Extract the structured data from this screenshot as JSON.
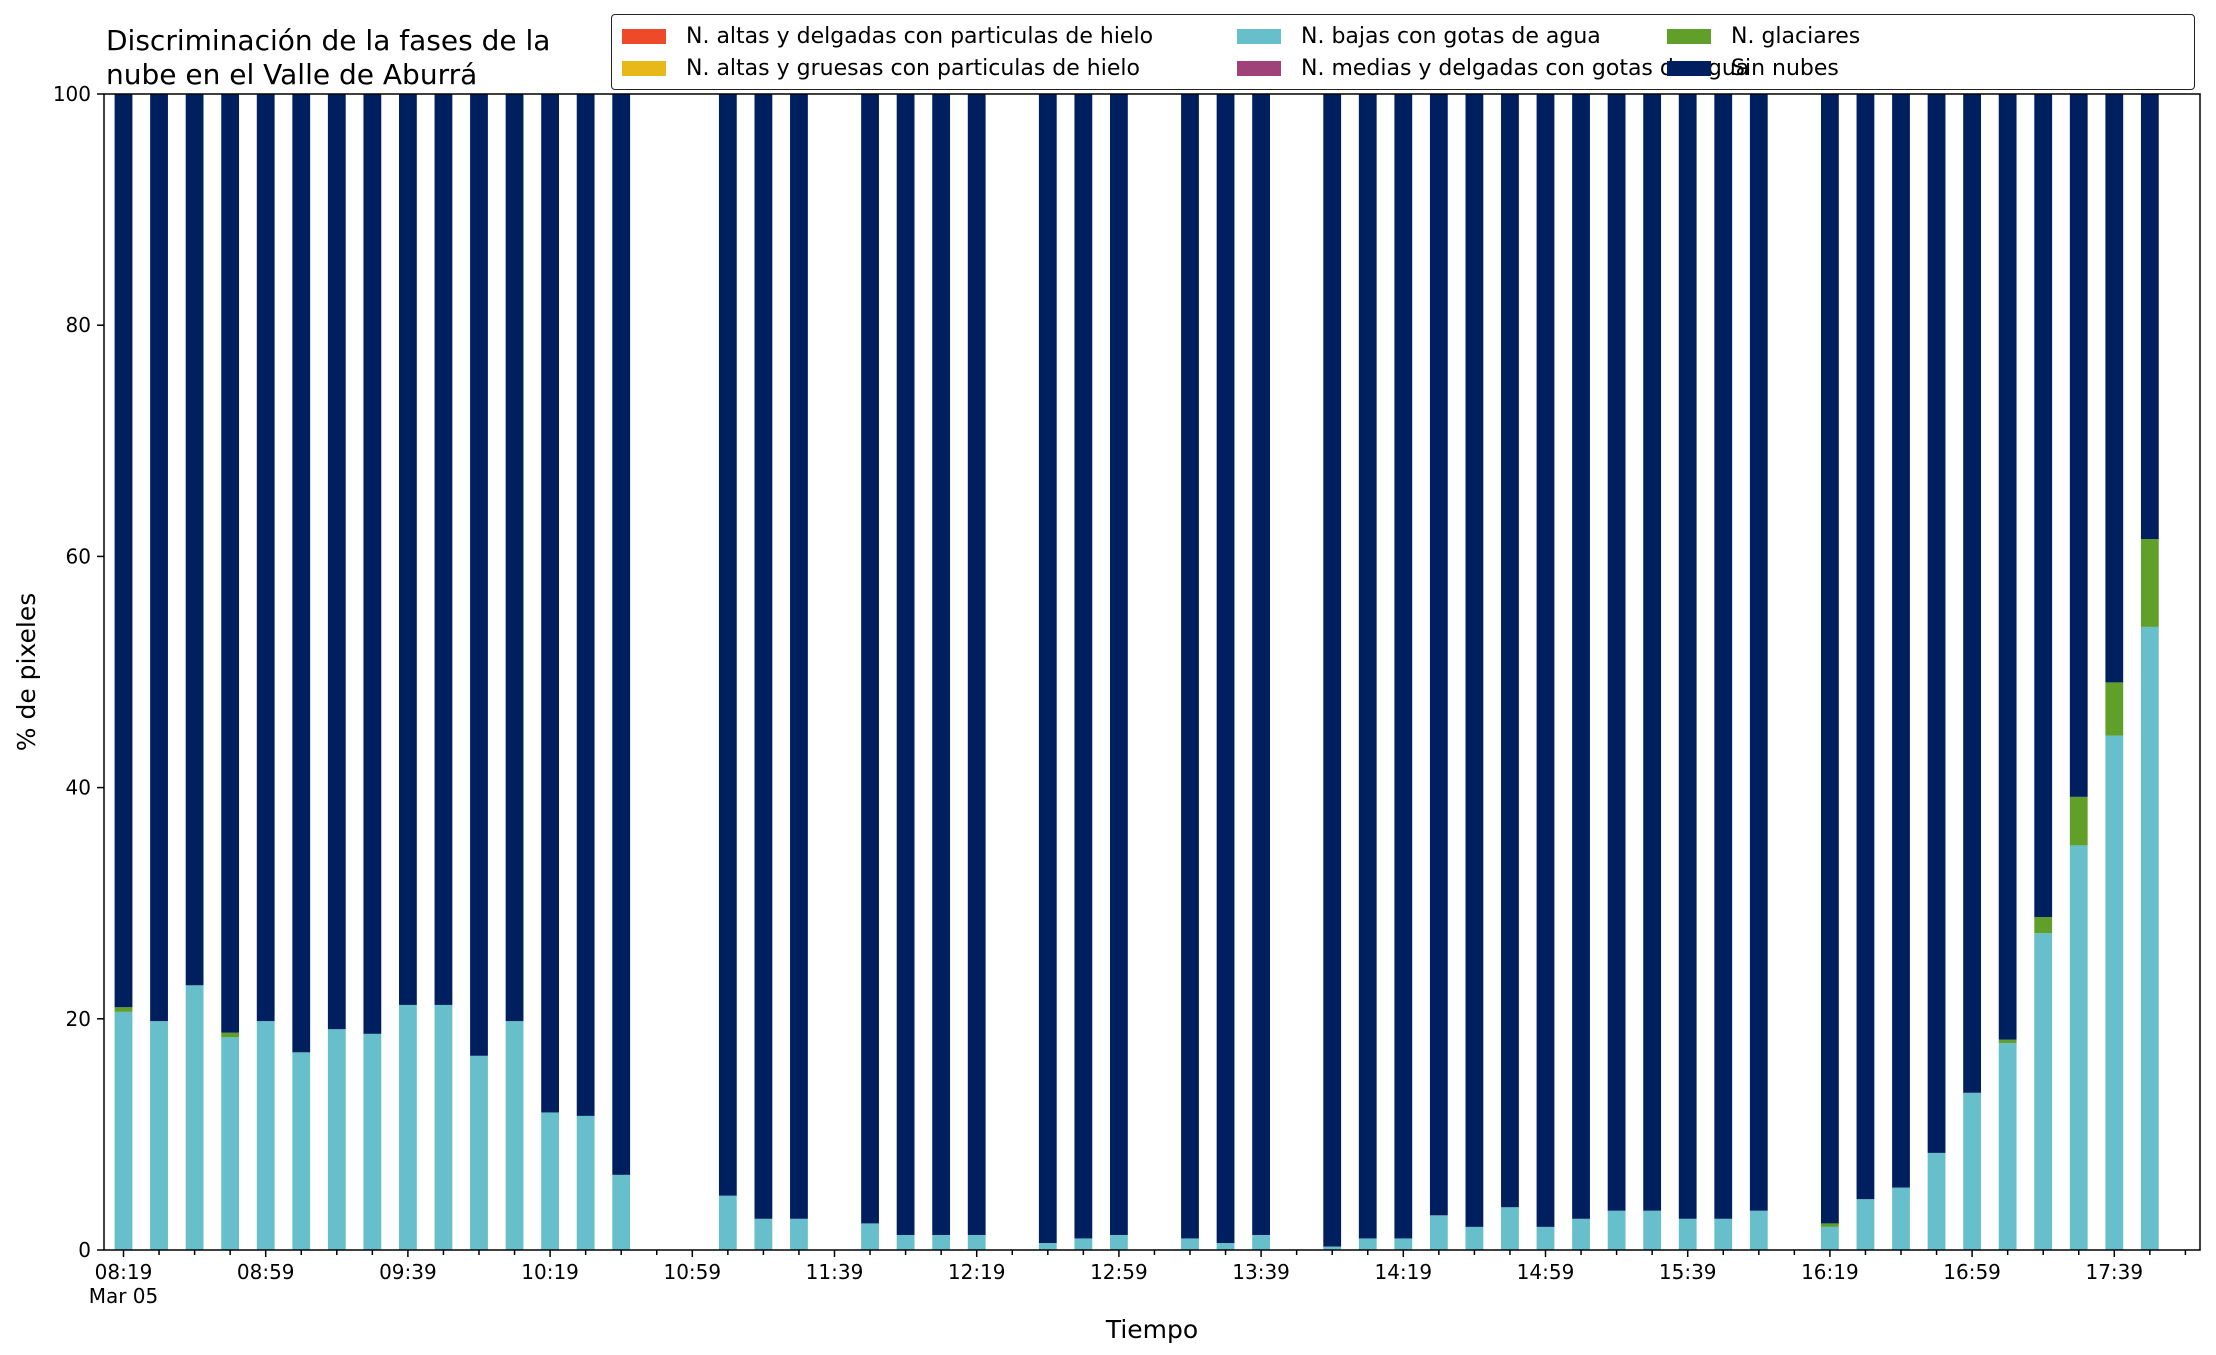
{
  "chart_data": {
    "type": "bar",
    "stacked": true,
    "title": "Discriminación de la fases de la\nnube en el Valle de Aburrá",
    "xlabel": "Tiempo",
    "ylabel": "% de pixeles",
    "ylim": [
      0,
      100
    ],
    "yticks": [
      "0",
      "20",
      "40",
      "60",
      "80",
      "100"
    ],
    "xtick_labels": [
      "08:19\nMar 05",
      "08:59",
      "09:39",
      "10:19",
      "10:59",
      "11:39",
      "12:19",
      "12:59",
      "13:39",
      "14:19",
      "14:59",
      "15:39",
      "16:19",
      "16:59",
      "17:39"
    ],
    "grid": false,
    "legend_position": "top-right",
    "categories": [
      "08:19",
      "08:29",
      "08:39",
      "08:49",
      "08:59",
      "09:09",
      "09:19",
      "09:29",
      "09:39",
      "09:49",
      "09:59",
      "10:09",
      "10:19",
      "10:29",
      "10:39",
      "10:49",
      "10:59",
      "11:09",
      "11:19",
      "11:29",
      "11:39",
      "11:49",
      "11:59",
      "12:09",
      "12:19",
      "12:29",
      "12:39",
      "12:49",
      "12:59",
      "13:09",
      "13:19",
      "13:29",
      "13:39",
      "13:49",
      "13:59",
      "14:09",
      "14:19",
      "14:29",
      "14:39",
      "14:49",
      "14:59",
      "15:09",
      "15:19",
      "15:29",
      "15:39",
      "15:49",
      "15:59",
      "16:09",
      "16:19",
      "16:29",
      "16:39",
      "16:49",
      "16:59",
      "17:09",
      "17:19",
      "17:29",
      "17:39",
      "17:49"
    ],
    "series": [
      {
        "name": "N. altas y delgadas con particulas de hielo",
        "color": "#ee4a2a",
        "values": [
          0,
          0,
          0,
          0,
          0,
          0,
          0,
          0,
          0,
          0,
          0,
          0,
          0,
          0,
          0,
          0,
          0,
          0,
          0,
          0,
          0,
          0,
          0,
          0,
          0,
          0,
          0,
          0,
          0,
          0,
          0,
          0,
          0,
          0,
          0,
          0,
          0,
          0,
          0,
          0,
          0,
          0,
          0,
          0,
          0,
          0,
          0,
          0,
          0,
          0,
          0,
          0,
          0,
          0,
          0,
          0,
          0,
          0
        ]
      },
      {
        "name": "N. altas y gruesas con particulas de hielo",
        "color": "#e6b919",
        "values": [
          0,
          0,
          0,
          0,
          0,
          0,
          0,
          0,
          0,
          0,
          0,
          0,
          0,
          0,
          0,
          0,
          0,
          0,
          0,
          0,
          0,
          0,
          0,
          0,
          0,
          0,
          0,
          0,
          0,
          0,
          0,
          0,
          0,
          0,
          0,
          0,
          0,
          0,
          0,
          0,
          0,
          0,
          0,
          0,
          0,
          0,
          0,
          0,
          0,
          0,
          0,
          0,
          0,
          0,
          0,
          0,
          0,
          0
        ]
      },
      {
        "name": "N. bajas con gotas de agua",
        "color": "#66bfcb",
        "values": [
          20.6,
          19.8,
          22.9,
          18.4,
          19.8,
          17.1,
          19.1,
          18.7,
          21.2,
          21.2,
          16.8,
          19.8,
          11.9,
          11.6,
          6.5,
          0,
          0,
          4.7,
          2.7,
          2.7,
          0,
          2.3,
          1.3,
          1.3,
          1.3,
          0,
          0.6,
          1.0,
          1.3,
          0,
          1.0,
          0.6,
          1.3,
          0,
          0.3,
          1.0,
          1.0,
          3.0,
          2.0,
          3.7,
          2.0,
          2.7,
          3.4,
          3.4,
          2.7,
          2.7,
          3.4,
          0,
          2.0,
          4.4,
          5.4,
          8.4,
          13.6,
          17.9,
          27.4,
          35.0,
          44.5,
          53.9
        ]
      },
      {
        "name": "N. medias y delgadas con gotas de agua",
        "color": "#a0427a",
        "values": [
          0,
          0,
          0,
          0,
          0,
          0,
          0,
          0,
          0,
          0,
          0,
          0,
          0,
          0,
          0,
          0,
          0,
          0,
          0,
          0,
          0,
          0,
          0,
          0,
          0,
          0,
          0,
          0,
          0,
          0,
          0,
          0,
          0,
          0,
          0,
          0,
          0,
          0,
          0,
          0,
          0,
          0,
          0,
          0,
          0,
          0,
          0,
          0,
          0,
          0,
          0,
          0,
          0,
          0,
          0,
          0,
          0,
          0
        ]
      },
      {
        "name": "N. glaciares",
        "color": "#60a02a",
        "values": [
          0.4,
          0,
          0,
          0.4,
          0,
          0,
          0,
          0,
          0,
          0,
          0,
          0,
          0,
          0,
          0,
          0,
          0,
          0,
          0,
          0,
          0,
          0,
          0,
          0,
          0,
          0,
          0,
          0,
          0,
          0,
          0,
          0,
          0,
          0,
          0,
          0,
          0,
          0,
          0,
          0,
          0,
          0,
          0,
          0,
          0,
          0,
          0,
          0,
          0.3,
          0,
          0,
          0,
          0,
          0.3,
          1.4,
          4.2,
          4.6,
          7.6
        ]
      },
      {
        "name": "Sin nubes",
        "color": "#001f5f",
        "values": [
          79.0,
          80.2,
          77.1,
          81.2,
          80.2,
          82.9,
          80.9,
          81.3,
          78.8,
          78.8,
          83.2,
          80.2,
          88.1,
          88.4,
          93.5,
          0,
          0,
          95.3,
          97.3,
          97.3,
          0,
          97.7,
          98.7,
          98.7,
          98.7,
          0,
          99.4,
          99.0,
          98.7,
          0,
          99.0,
          99.4,
          98.7,
          0,
          99.7,
          99.0,
          99.0,
          97.0,
          98.0,
          96.3,
          98.0,
          97.3,
          96.6,
          96.6,
          97.3,
          97.3,
          96.6,
          0,
          97.7,
          95.6,
          94.6,
          91.6,
          86.4,
          81.8,
          71.2,
          60.8,
          50.9,
          38.5
        ]
      }
    ]
  }
}
